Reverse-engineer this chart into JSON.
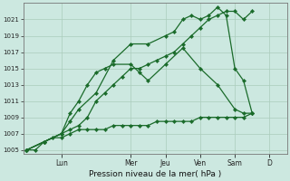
{
  "background_color": "#cce8e0",
  "grid_color": "#aaccbb",
  "line_color": "#1a6b2a",
  "marker_color": "#1a6b2a",
  "xlabel": "Pression niveau de la mer( hPa )",
  "ylim": [
    1004.5,
    1023.0
  ],
  "yticks": [
    1005,
    1007,
    1009,
    1011,
    1013,
    1015,
    1017,
    1019,
    1021
  ],
  "day_labels": [
    "Lun",
    "Mer",
    "Jeu",
    "Ven",
    "Sam",
    "D"
  ],
  "day_positions": [
    1.0,
    3.0,
    4.0,
    5.0,
    6.0,
    7.0
  ],
  "xlim": [
    -0.1,
    7.5
  ],
  "series1_flat": {
    "x": [
      0,
      0.25,
      0.5,
      0.75,
      1.0,
      1.25,
      1.5,
      1.75,
      2.0,
      2.25,
      2.5,
      2.75,
      3.0,
      3.25,
      3.5,
      3.75,
      4.0,
      4.25,
      4.5,
      4.75,
      5.0,
      5.25,
      5.5,
      5.75,
      6.0,
      6.25,
      6.5
    ],
    "y": [
      1005,
      1005,
      1006,
      1006.5,
      1006.5,
      1007,
      1007.5,
      1007.5,
      1007.5,
      1007.5,
      1008,
      1008,
      1008,
      1008,
      1008,
      1008.5,
      1008.5,
      1008.5,
      1008.5,
      1008.5,
      1009,
      1009,
      1009,
      1009,
      1009,
      1009,
      1009.5
    ]
  },
  "series2_peaked": {
    "x": [
      0,
      0.5,
      1.0,
      1.25,
      1.5,
      1.75,
      2.0,
      2.25,
      2.5,
      3.0,
      3.25,
      3.5,
      4.0,
      4.5,
      5.0,
      5.5,
      6.0,
      6.25,
      6.5
    ],
    "y": [
      1005,
      1006,
      1007,
      1009.5,
      1011,
      1013,
      1014.5,
      1015,
      1015.5,
      1015.5,
      1014.5,
      1013.5,
      1015.5,
      1017.5,
      1015,
      1013,
      1010,
      1009.5,
      1009.5
    ]
  },
  "series3_high": {
    "x": [
      0,
      0.5,
      1.0,
      1.25,
      1.5,
      1.75,
      2.0,
      2.25,
      2.5,
      2.75,
      3.0,
      3.25,
      3.5,
      3.75,
      4.0,
      4.25,
      4.5,
      4.75,
      5.0,
      5.25,
      5.5,
      5.75,
      6.0,
      6.25,
      6.5
    ],
    "y": [
      1005,
      1006,
      1007,
      1007.5,
      1008,
      1009,
      1011,
      1012,
      1013,
      1014,
      1015,
      1015,
      1015.5,
      1016,
      1016.5,
      1017,
      1018,
      1019,
      1020,
      1021,
      1021.5,
      1022,
      1022,
      1021,
      1022
    ]
  },
  "series4_sharp": {
    "x": [
      0,
      0.5,
      1.0,
      1.25,
      1.5,
      2.0,
      2.5,
      3.0,
      3.5,
      4.0,
      4.25,
      4.5,
      4.75,
      5.0,
      5.25,
      5.5,
      5.75,
      6.0,
      6.25,
      6.5
    ],
    "y": [
      1005,
      1006,
      1007,
      1008.5,
      1010,
      1012,
      1016,
      1018,
      1018,
      1019,
      1019.5,
      1021,
      1021.5,
      1021,
      1021.5,
      1022.5,
      1021.5,
      1015,
      1013.5,
      1009.5
    ]
  }
}
